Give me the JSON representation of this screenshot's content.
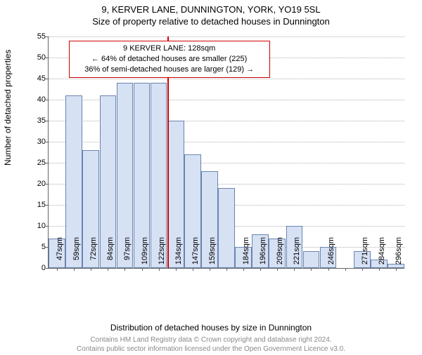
{
  "title_main": "9, KERVER LANE, DUNNINGTON, YORK, YO19 5SL",
  "title_sub": "Size of property relative to detached houses in Dunnington",
  "ylabel": "Number of detached properties",
  "xlabel": "Distribution of detached houses by size in Dunnington",
  "footer_line1": "Contains HM Land Registry data © Crown copyright and database right 2024.",
  "footer_line2": "Contains public sector information licensed under the Open Government Licence v3.0.",
  "chart": {
    "type": "histogram",
    "ylim": [
      0,
      55
    ],
    "yticks": [
      0,
      5,
      10,
      15,
      20,
      25,
      30,
      35,
      40,
      45,
      50,
      55
    ],
    "x_categories": [
      "47sqm",
      "59sqm",
      "72sqm",
      "84sqm",
      "97sqm",
      "109sqm",
      "122sqm",
      "134sqm",
      "147sqm",
      "159sqm",
      "",
      "184sqm",
      "196sqm",
      "209sqm",
      "221sqm",
      "",
      "246sqm",
      "",
      "271sqm",
      "284sqm",
      "296sqm"
    ],
    "values": [
      7,
      41,
      28,
      41,
      44,
      44,
      44,
      35,
      27,
      23,
      19,
      5,
      8,
      7,
      10,
      4,
      5,
      0,
      4,
      2,
      1
    ],
    "bar_fill": "#d6e1f4",
    "bar_stroke": "#6a84b0",
    "grid_color": "#b0b0b0",
    "background": "#ffffff",
    "reference_index": 6.5,
    "reference_color": "#cc0000",
    "info_box": {
      "line1": "9 KERVER LANE: 128sqm",
      "line2": "← 64% of detached houses are smaller (225)",
      "line3": "36% of semi-detached houses are larger (129) →"
    }
  }
}
